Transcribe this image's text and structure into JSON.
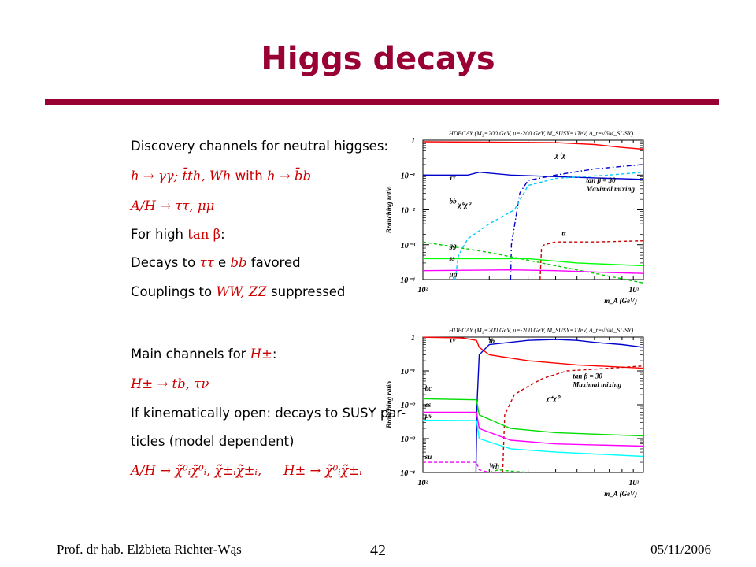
{
  "slide": {
    "title": "Higgs decays",
    "left_text": {
      "l1": "Discovery channels for neutral higgses:",
      "l2a": "h → γγ; ",
      "l2b": "t̄th, Wh",
      "l2c": " with ",
      "l2d": "h → b̄b",
      "l3": "A/H → ττ, μμ",
      "l4a": "For high ",
      "l4b": "tan β",
      "l4c": ":",
      "l5a": "Decays to ",
      "l5b": "ττ",
      "l5c": " e ",
      "l5d": "bb",
      "l5e": " favored",
      "l6a": "Couplings to ",
      "l6b": "WW, ZZ",
      "l6c": " suppressed",
      "l7a": "Main channels for ",
      "l7b": "H±",
      "l7c": ":",
      "l8": "H± → tb, τν",
      "l9": "If kinematically open: decays to SUSY par-",
      "l10": "ticles (model dependent)",
      "l11a": "A/H → χ̃⁰ᵢχ̃⁰ᵢ, χ̃±ᵢχ̃±ᵢ,",
      "l11b": "H± → χ̃⁰ᵢχ̃±ᵢ"
    },
    "footer": {
      "author": "Prof. dr hab. Elżbieta Richter-Wąs",
      "page": "42",
      "date": "05/11/2006"
    }
  },
  "chart_data": [
    {
      "type": "line",
      "title": "HDECAY (M₂=200 GeV, μ=-200 GeV, M_SUSY=1TeV, A_t=√6M_SUSY)",
      "xlabel": "m_A (GeV)",
      "ylabel": "Branching ratio",
      "x_scale": "log",
      "y_scale": "log",
      "xlim": [
        100,
        1000
      ],
      "ylim": [
        0.0001,
        1
      ],
      "x_ticks": [
        "10²",
        "10³"
      ],
      "y_ticks": [
        "1",
        "10⁻¹",
        "10⁻²",
        "10⁻³",
        "10⁻⁴"
      ],
      "annotations": [
        "tan β = 30",
        "Maximal mixing"
      ],
      "series": [
        {
          "name": "bb",
          "color": "#ff0000",
          "style": "solid",
          "x": [
            100,
            200,
            400,
            600,
            800,
            1000
          ],
          "y": [
            0.9,
            0.88,
            0.85,
            0.75,
            0.62,
            0.55
          ]
        },
        {
          "name": "ττ",
          "color": "#0000cc",
          "style": "solid",
          "x": [
            100,
            160,
            180,
            250,
            400,
            700,
            1000
          ],
          "y": [
            0.1,
            0.1,
            0.12,
            0.1,
            0.09,
            0.08,
            0.075
          ]
        },
        {
          "name": "χ⁺χ⁻",
          "color": "#0000cc",
          "style": "dash-dot",
          "x": [
            250,
            252,
            275,
            300,
            400,
            600,
            1000
          ],
          "y": [
            0.0001,
            0.001,
            0.03,
            0.07,
            0.1,
            0.15,
            0.2
          ]
        },
        {
          "name": "χ⁰χ⁰",
          "color": "#00ccff",
          "style": "dashed",
          "x": [
            140,
            145,
            160,
            200,
            260,
            300,
            400,
            700,
            1000
          ],
          "y": [
            0.0001,
            0.0005,
            0.0015,
            0.004,
            0.01,
            0.05,
            0.08,
            0.1,
            0.12
          ]
        },
        {
          "name": "tt",
          "color": "#cc0000",
          "style": "dashed",
          "x": [
            340,
            345,
            355,
            400,
            600,
            1000
          ],
          "y": [
            0.0001,
            0.0008,
            0.001,
            0.0012,
            0.0012,
            0.0013
          ]
        },
        {
          "name": "gg",
          "color": "#00cc00",
          "style": "dashed",
          "x": [
            100,
            200,
            400,
            1000
          ],
          "y": [
            0.0012,
            0.0006,
            0.00025,
            8e-05
          ]
        },
        {
          "name": "ss",
          "color": "#00ff00",
          "style": "solid",
          "x": [
            100,
            250,
            300,
            500,
            1000
          ],
          "y": [
            0.0004,
            0.0004,
            0.0004,
            0.0003,
            0.00025
          ]
        },
        {
          "name": "μμ",
          "color": "#ff00ff",
          "style": "solid",
          "x": [
            100,
            250,
            400,
            700,
            1000
          ],
          "y": [
            0.00018,
            0.00019,
            0.00018,
            0.00016,
            0.00015
          ]
        }
      ]
    },
    {
      "type": "line",
      "title": "HDECAY (M₂=200 GeV, μ=-200 GeV, M_SUSY=1TeV, A_t=√6M_SUSY)",
      "xlabel": "m_A (GeV)",
      "ylabel": "Branching ratio",
      "x_scale": "log",
      "y_scale": "log",
      "xlim": [
        100,
        1000
      ],
      "ylim": [
        0.0001,
        1
      ],
      "x_ticks": [
        "10²",
        "10³"
      ],
      "y_ticks": [
        "1",
        "10⁻¹",
        "10⁻²",
        "10⁻³",
        "10⁻⁴"
      ],
      "annotations": [
        "tan β = 30",
        "Maximal mixing"
      ],
      "series": [
        {
          "name": "τν",
          "color": "#ff0000",
          "style": "solid",
          "x": [
            100,
            150,
            175,
            180,
            200,
            300,
            500,
            1000
          ],
          "y": [
            0.99,
            0.95,
            0.8,
            0.5,
            0.3,
            0.2,
            0.15,
            0.12
          ]
        },
        {
          "name": "tb",
          "color": "#0000cc",
          "style": "solid",
          "x": [
            174,
            176,
            180,
            200,
            300,
            400,
            500,
            600,
            800,
            1000
          ],
          "y": [
            0.0001,
            0.01,
            0.3,
            0.6,
            0.8,
            0.85,
            0.8,
            0.7,
            0.6,
            0.5
          ]
        },
        {
          "name": "χ⁺χ⁰",
          "color": "#cc0000",
          "style": "dashed",
          "x": [
            230,
            235,
            260,
            300,
            350,
            450,
            700,
            1000
          ],
          "y": [
            0.0001,
            0.005,
            0.02,
            0.035,
            0.06,
            0.1,
            0.12,
            0.14
          ]
        },
        {
          "name": "bc",
          "color": "#00dd00",
          "style": "solid",
          "x": [
            100,
            175,
            180,
            250,
            400,
            1000
          ],
          "y": [
            0.015,
            0.014,
            0.005,
            0.002,
            0.0015,
            0.0012
          ]
        },
        {
          "name": "cs",
          "color": "#ff00ff",
          "style": "solid",
          "x": [
            100,
            175,
            180,
            250,
            400,
            1000
          ],
          "y": [
            0.006,
            0.006,
            0.002,
            0.0009,
            0.0007,
            0.0006
          ]
        },
        {
          "name": "μν",
          "color": "#00ffff",
          "style": "solid",
          "x": [
            100,
            175,
            180,
            250,
            400,
            1000
          ],
          "y": [
            0.0035,
            0.0034,
            0.001,
            0.0005,
            0.0004,
            0.0003
          ]
        },
        {
          "name": "su",
          "color": "#ff00ff",
          "style": "dashed",
          "x": [
            100,
            175,
            180,
            200,
            220
          ],
          "y": [
            0.0002,
            0.0002,
            0.00012,
            0.0001,
            0.0001
          ]
        },
        {
          "name": "Wh",
          "color": "#00cc00",
          "style": "dashed",
          "x": [
            200,
            220,
            250,
            300
          ],
          "y": [
            0.0001,
            0.00012,
            0.00011,
            0.0001
          ]
        }
      ]
    }
  ]
}
